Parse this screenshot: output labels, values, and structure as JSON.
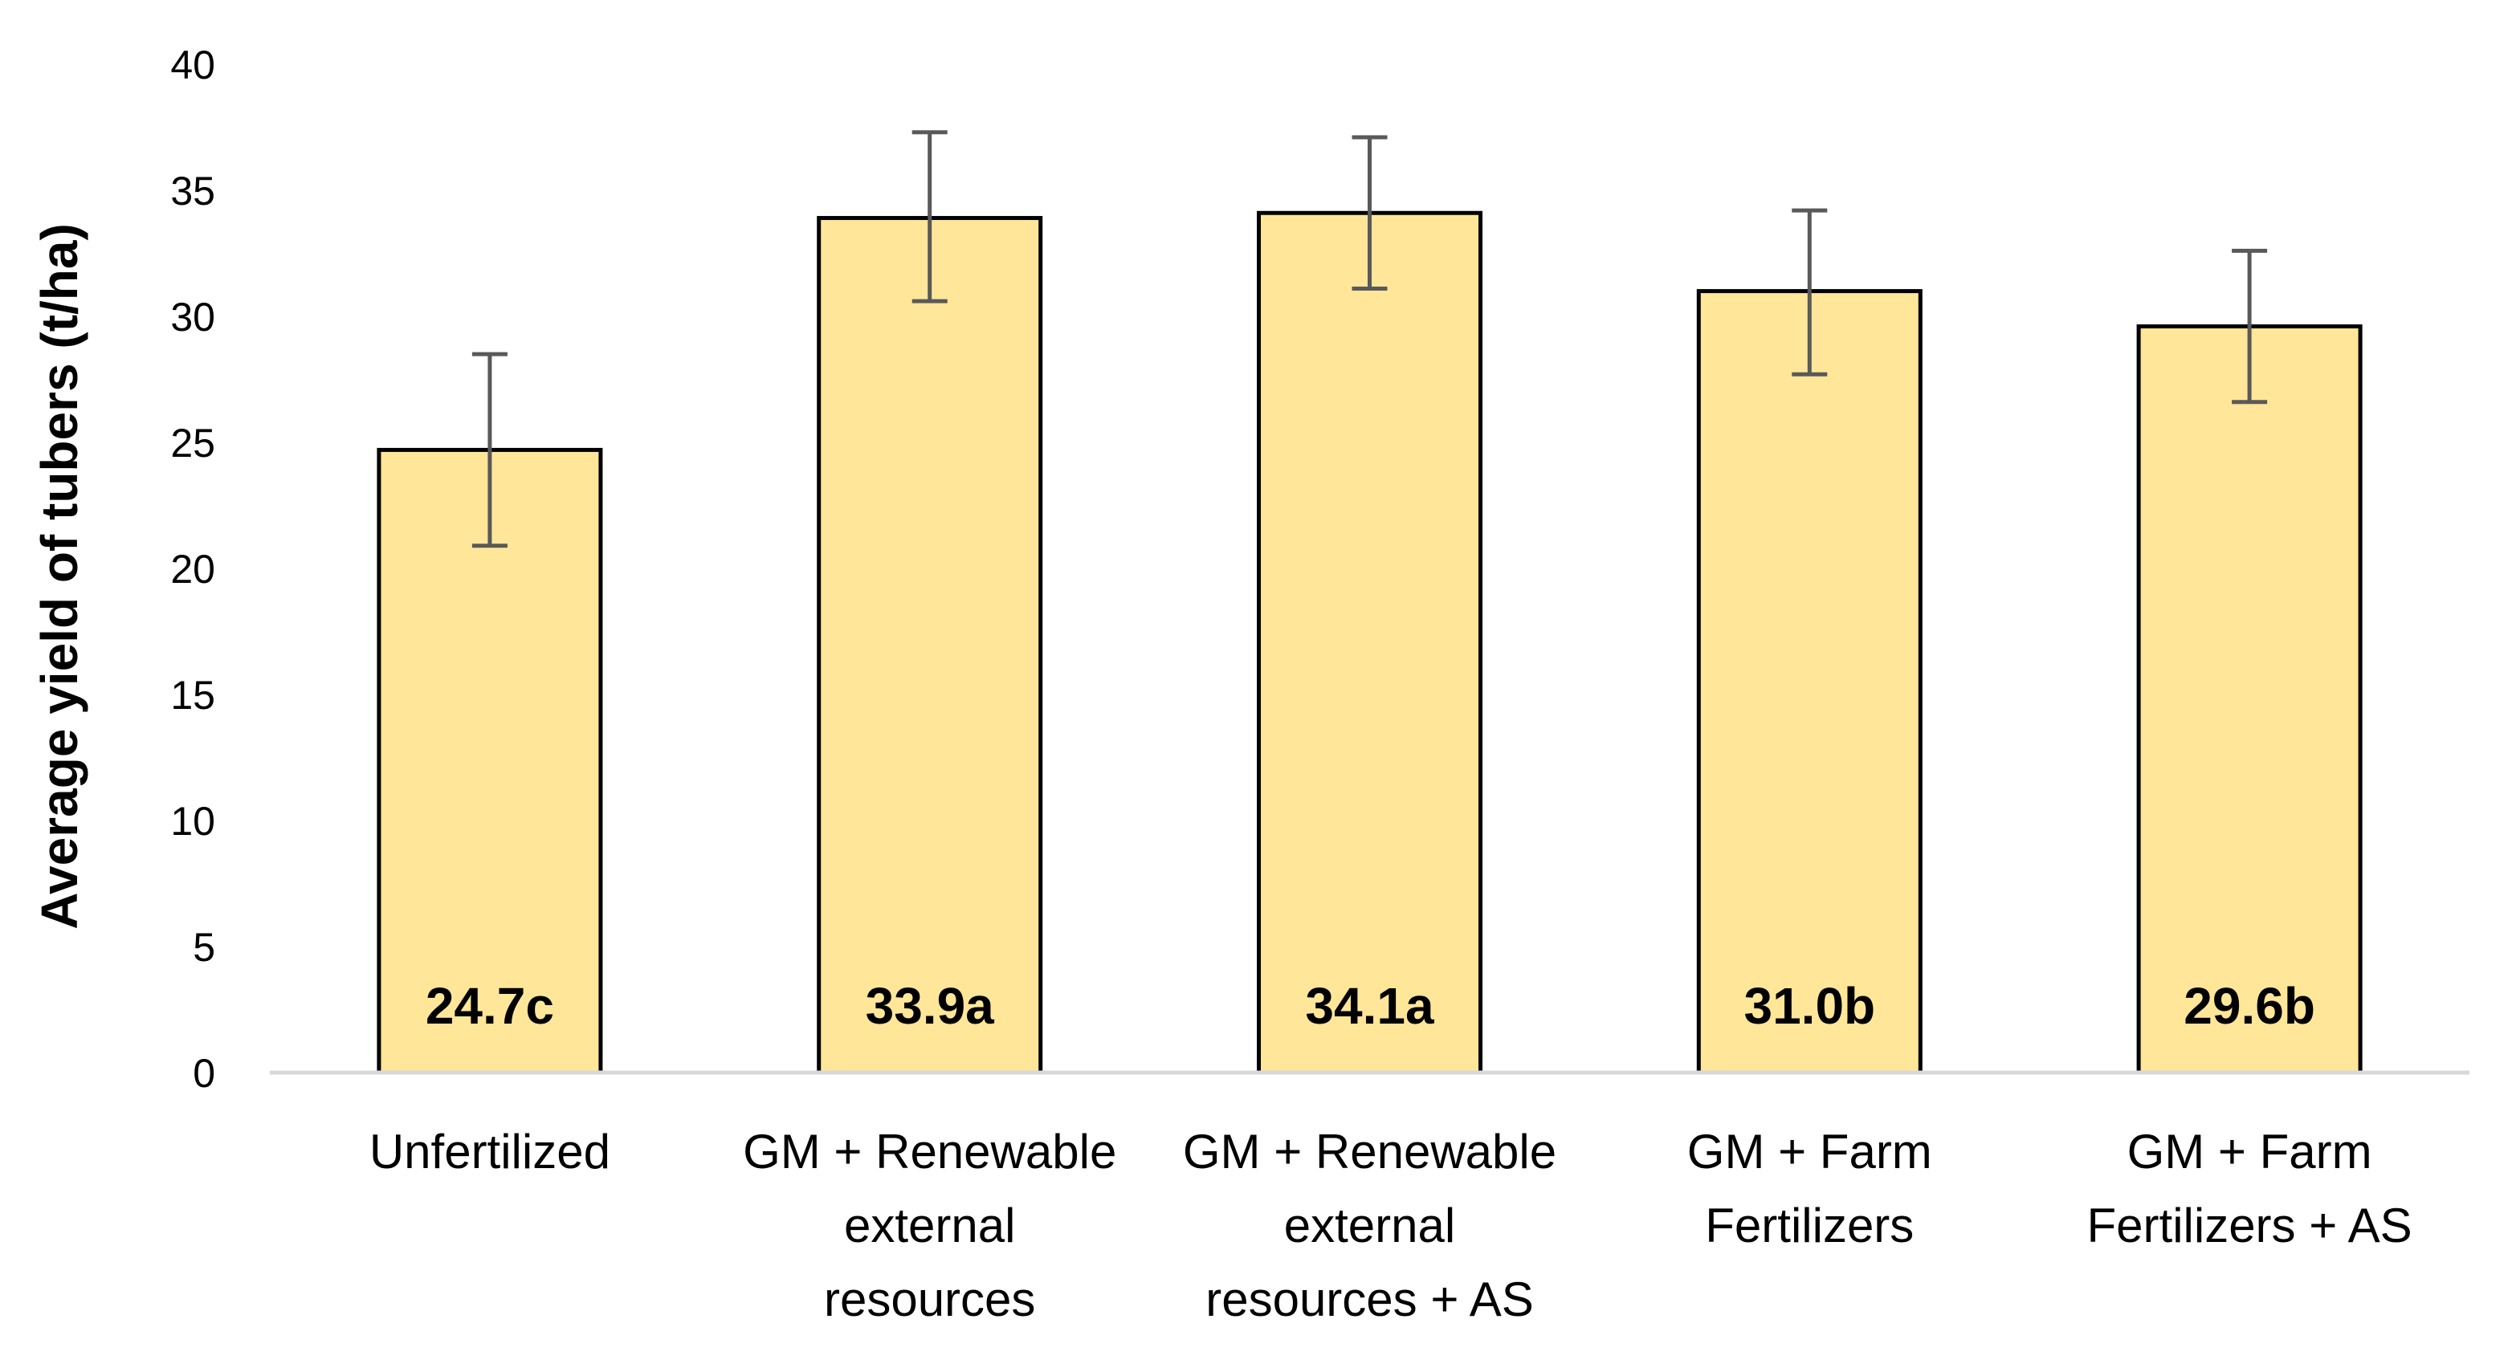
{
  "chart_data": {
    "type": "bar",
    "title": "",
    "xlabel": "",
    "ylabel": "Average yield of tubers (t/ha)",
    "ylim": [
      0,
      40
    ],
    "yticks": [
      0,
      5,
      10,
      15,
      20,
      25,
      30,
      35,
      40
    ],
    "grid": false,
    "categories": [
      [
        "Unfertilized"
      ],
      [
        "GM + Renewable",
        "external",
        "resources"
      ],
      [
        "GM + Renewable",
        "external",
        "resources + AS"
      ],
      [
        "GM + Farm",
        "Fertilizers"
      ],
      [
        "GM + Farm",
        "Fertilizers + AS"
      ]
    ],
    "values": [
      24.7,
      33.9,
      34.1,
      31.0,
      29.6
    ],
    "error_bars": [
      [
        20.9,
        28.5
      ],
      [
        30.6,
        37.3
      ],
      [
        31.1,
        37.1
      ],
      [
        27.7,
        34.2
      ],
      [
        26.6,
        32.6
      ]
    ],
    "data_labels": [
      "24.7c",
      "33.9a",
      "34.1a",
      "31.0b",
      "29.6b"
    ],
    "bar_color": "#FFE699",
    "bar_edge_color": "#000000",
    "error_bar_color": "#595959",
    "axis_color": "#D9D9D9"
  }
}
